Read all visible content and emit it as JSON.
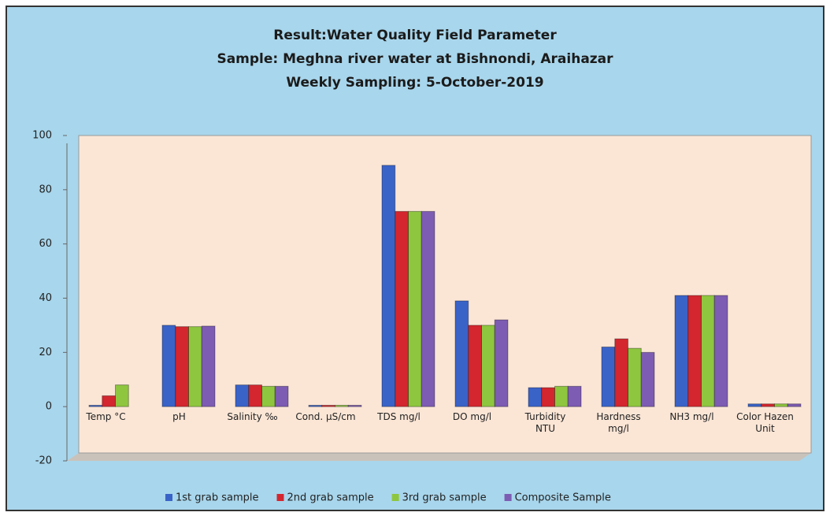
{
  "chart_data": {
    "type": "bar",
    "title": [
      "Result:Water Quality Field Parameter",
      "Sample: Meghna river water at Bishnondi, Araihazar",
      "Weekly Sampling: 5-October-2019"
    ],
    "categories": [
      "Temp °C",
      "pH",
      "Salinity ‰",
      "Cond. µS/cm",
      "TDS mg/l",
      "DO mg/l",
      "Turbidity NTU",
      "Hardness mg/l",
      "NH3 mg/l",
      "Color Hazen Unit"
    ],
    "series": [
      {
        "name": "1st grab sample",
        "color": "#3a63c8",
        "values": [
          0.5,
          30,
          8,
          0.5,
          89,
          39,
          7,
          22,
          41,
          1
        ]
      },
      {
        "name": "2nd grab sample",
        "color": "#d3262e",
        "values": [
          4,
          29.5,
          8,
          0.5,
          72,
          30,
          7,
          25,
          41,
          1
        ]
      },
      {
        "name": "3rd grab sample",
        "color": "#8ec63f",
        "values": [
          8,
          29.5,
          7.5,
          0.5,
          72,
          30,
          7.5,
          21.5,
          41,
          1
        ]
      },
      {
        "name": "Composite Sample",
        "color": "#7d5cb3",
        "values": [
          0,
          29.7,
          7.5,
          0.5,
          72,
          32,
          7.5,
          20,
          41,
          1
        ]
      }
    ],
    "ylim": [
      -20,
      100
    ],
    "yticks": [
      -20,
      0,
      20,
      40,
      60,
      80,
      100
    ],
    "grid": false,
    "legend": "bottom"
  }
}
